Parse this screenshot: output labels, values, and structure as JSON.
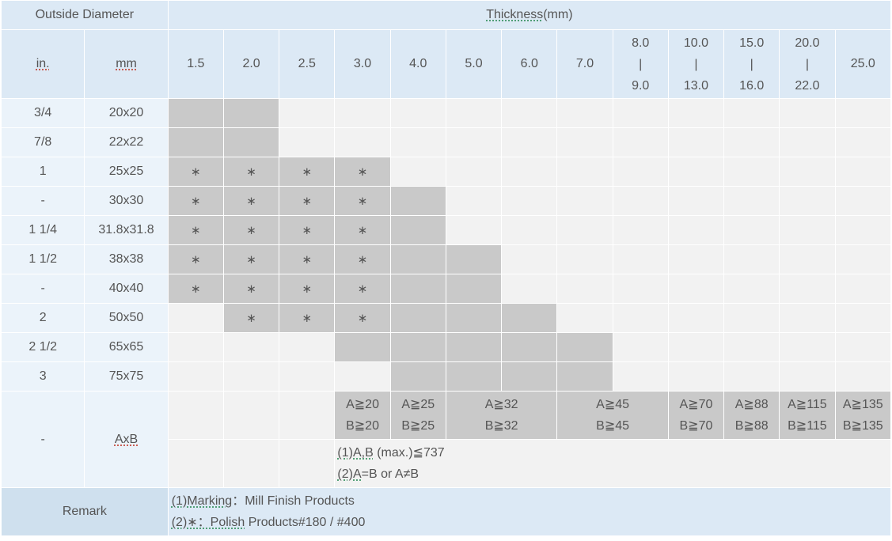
{
  "header": {
    "outside_diameter": "Outside Diameter",
    "thickness_word": "Thickness",
    "thickness_unit": "(mm)",
    "col_in": "in.",
    "col_mm": "mm",
    "thick_cols": [
      "1.5",
      "2.0",
      "2.5",
      "3.0",
      "4.0",
      "5.0",
      "6.0",
      "7.0"
    ],
    "range_cols": [
      {
        "top": "8.0",
        "mid": "|",
        "bot": "9.0"
      },
      {
        "top": "10.0",
        "mid": "|",
        "bot": "13.0"
      },
      {
        "top": "15.0",
        "mid": "|",
        "bot": "16.0"
      },
      {
        "top": "20.0",
        "mid": "|",
        "bot": "22.0"
      }
    ],
    "last_col": "25.0"
  },
  "rows": [
    {
      "in": "3/4",
      "mm": "20x20",
      "cells": [
        "g",
        "g",
        "l",
        "l",
        "l",
        "l",
        "l",
        "l",
        "l",
        "l",
        "l",
        "l",
        "l"
      ]
    },
    {
      "in": "7/8",
      "mm": "22x22",
      "cells": [
        "g",
        "g",
        "l",
        "l",
        "l",
        "l",
        "l",
        "l",
        "l",
        "l",
        "l",
        "l",
        "l"
      ]
    },
    {
      "in": "1",
      "mm": "25x25",
      "cells": [
        "s",
        "s",
        "s",
        "s",
        "l",
        "l",
        "l",
        "l",
        "l",
        "l",
        "l",
        "l",
        "l"
      ]
    },
    {
      "in": "-",
      "mm": "30x30",
      "cells": [
        "s",
        "s",
        "s",
        "s",
        "g",
        "l",
        "l",
        "l",
        "l",
        "l",
        "l",
        "l",
        "l"
      ]
    },
    {
      "in": "1 1/4",
      "mm": "31.8x31.8",
      "cells": [
        "s",
        "s",
        "s",
        "s",
        "g",
        "l",
        "l",
        "l",
        "l",
        "l",
        "l",
        "l",
        "l"
      ]
    },
    {
      "in": "1 1/2",
      "mm": "38x38",
      "cells": [
        "s",
        "s",
        "s",
        "s",
        "g",
        "g",
        "l",
        "l",
        "l",
        "l",
        "l",
        "l",
        "l"
      ]
    },
    {
      "in": "-",
      "mm": "40x40",
      "cells": [
        "s",
        "s",
        "s",
        "s",
        "g",
        "g",
        "l",
        "l",
        "l",
        "l",
        "l",
        "l",
        "l"
      ]
    },
    {
      "in": "2",
      "mm": "50x50",
      "cells": [
        "l",
        "s",
        "s",
        "s",
        "g",
        "g",
        "g",
        "l",
        "l",
        "l",
        "l",
        "l",
        "l"
      ]
    },
    {
      "in": "2 1/2",
      "mm": "65x65",
      "cells": [
        "l",
        "l",
        "l",
        "g",
        "g",
        "g",
        "g",
        "g",
        "l",
        "l",
        "l",
        "l",
        "l"
      ]
    },
    {
      "in": "3",
      "mm": "75x75",
      "cells": [
        "l",
        "l",
        "l",
        "l",
        "g",
        "g",
        "g",
        "g",
        "l",
        "l",
        "l",
        "l",
        "l"
      ]
    }
  ],
  "star_symbol": "∗",
  "axb_row": {
    "in": "-",
    "mm": "AxB",
    "groups": [
      {
        "a": "A≧20",
        "b": "B≧20",
        "span": 1
      },
      {
        "a": "A≧25",
        "b": "B≧25",
        "span": 1
      },
      {
        "a": "A≧32",
        "b": "B≧32",
        "span": 2
      },
      {
        "a": "A≧45",
        "b": "B≧45",
        "span": 2
      },
      {
        "a": "A≧70",
        "b": "B≧70",
        "span": 1
      },
      {
        "a": "A≧88",
        "b": "B≧88",
        "span": 1
      },
      {
        "a": "A≧115",
        "b": "B≧115",
        "span": 1
      },
      {
        "a": "A≧135",
        "b": "B≧135",
        "span": 1
      }
    ],
    "note1_prefix": "(1)A,B",
    "note1_rest": " (max.)≦737",
    "note2_prefix": "(2)A",
    "note2_rest": "=B or A≠B"
  },
  "remark": {
    "label": "Remark",
    "line1_prefix": "(1)Marking",
    "line1_rest": "：Mill Finish Products",
    "line2_prefix": "(2)∗：Polish",
    "line2_rest": " Products#180 / #400"
  }
}
